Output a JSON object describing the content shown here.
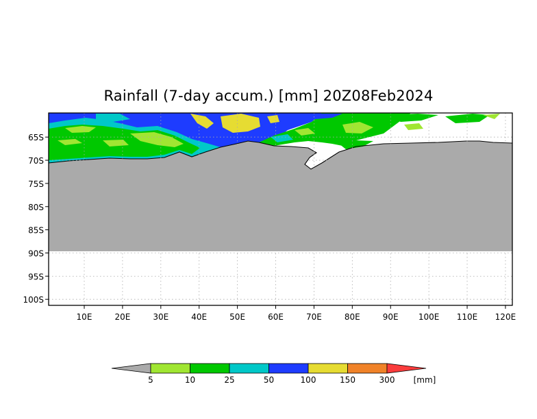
{
  "title": "Rainfall (7-day accum.) [mm] 20Z08Feb2024",
  "map": {
    "lat_ticks": [
      "65S",
      "70S",
      "75S",
      "80S",
      "85S",
      "90S",
      "95S",
      "100S"
    ],
    "lon_ticks": [
      "10E",
      "20E",
      "30E",
      "40E",
      "50E",
      "60E",
      "70E",
      "80E",
      "90E",
      "100E",
      "110E",
      "120E"
    ],
    "lat_range": [
      -101.3,
      -59.8
    ],
    "lon_range": [
      0.7,
      121.8
    ],
    "land_color": "#aaaaaa",
    "grid": "dotted"
  },
  "colorbar": {
    "unit": "[mm]",
    "levels": [
      "5",
      "10",
      "25",
      "50",
      "100",
      "150",
      "300"
    ],
    "colors": [
      "#aaaaaa",
      "#a0e632",
      "#00c800",
      "#00c8c8",
      "#1e3cff",
      "#e6dc32",
      "#f08228",
      "#fa3c3c"
    ]
  }
}
